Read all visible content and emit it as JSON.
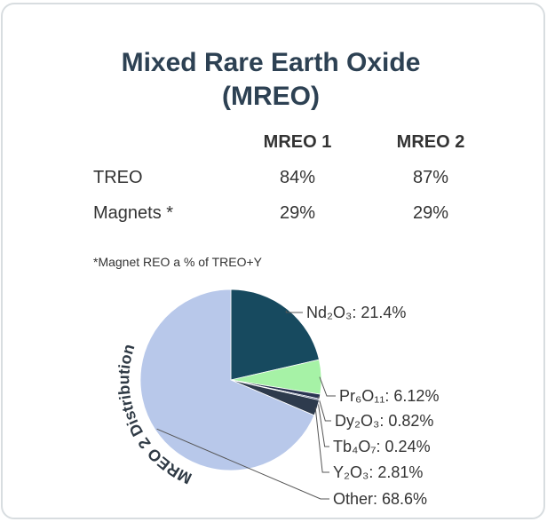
{
  "title": [
    "Mixed Rare Earth Oxide",
    "(MREO)"
  ],
  "table": {
    "columns": [
      "MREO 1",
      "MREO 2"
    ],
    "rows": [
      [
        "TREO",
        "84%",
        "87%"
      ],
      [
        "Magnets *",
        "29%",
        "29%"
      ]
    ]
  },
  "note": "*Magnet REO a % of TREO+Y",
  "chart_data": {
    "type": "pie",
    "title": "MREO 2 Distribution",
    "values": [
      21.4,
      6.12,
      0.82,
      0.24,
      2.81,
      68.6
    ],
    "value_labels": [
      "Nd₂O₃: 21.4%",
      "Pr₆O₁₁: 6.12%",
      "Dy₂O₃: 0.82%",
      "Tb₄O₇: 0.24%",
      "Y₂O₃: 2.81%",
      "Other: 68.6%"
    ],
    "colors": [
      "#174a5f",
      "#a6f2a6",
      "#2b3552",
      "#44557e",
      "#2e3b4d",
      "#b8c8ea"
    ]
  }
}
